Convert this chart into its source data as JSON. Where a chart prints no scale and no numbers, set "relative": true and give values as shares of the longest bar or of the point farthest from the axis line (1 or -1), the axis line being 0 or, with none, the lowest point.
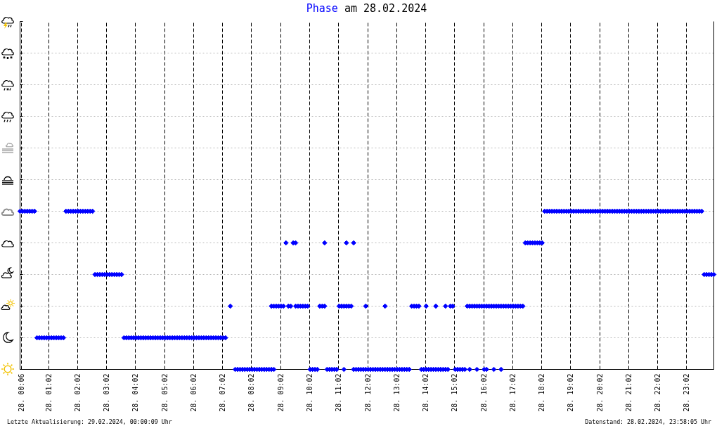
{
  "chart_data": {
    "type": "scatter",
    "title": "am 28.02.2024",
    "marker": "diamond",
    "grid": true,
    "tick_labels": "x",
    "relative": true,
    "xlim": [
      "2024-02-28T00:03",
      "2024-02-28T23:58"
    ],
    "xticks": [
      {
        "value": "2024-02-28T00:06",
        "label": "28. 00:06"
      },
      {
        "value": "2024-02-28T01:02",
        "label": "28. 01:02"
      },
      {
        "value": "2024-02-28T02:02",
        "label": "28. 02:02"
      },
      {
        "value": "2024-02-28T03:02",
        "label": "28. 03:02"
      },
      {
        "value": "2024-02-28T04:02",
        "label": "28. 04:02"
      },
      {
        "value": "2024-02-28T05:02",
        "label": "28. 05:02"
      },
      {
        "value": "2024-02-28T06:02",
        "label": "28. 06:02"
      },
      {
        "value": "2024-02-28T07:02",
        "label": "28. 07:02"
      },
      {
        "value": "2024-02-28T08:02",
        "label": "28. 08:02"
      },
      {
        "value": "2024-02-28T09:02",
        "label": "28. 09:02"
      },
      {
        "value": "2024-02-28T10:02",
        "label": "28. 10:02"
      },
      {
        "value": "2024-02-28T11:02",
        "label": "28. 11:02"
      },
      {
        "value": "2024-02-28T12:02",
        "label": "28. 12:02"
      },
      {
        "value": "2024-02-28T13:02",
        "label": "28. 13:02"
      },
      {
        "value": "2024-02-28T14:02",
        "label": "28. 14:02"
      },
      {
        "value": "2024-02-28T15:02",
        "label": "28. 15:02"
      },
      {
        "value": "2024-02-28T16:02",
        "label": "28. 16:02"
      },
      {
        "value": "2024-02-28T17:02",
        "label": "28. 17:02"
      },
      {
        "value": "2024-02-28T18:02",
        "label": "28. 18:02"
      },
      {
        "value": "2024-02-28T19:02",
        "label": "28. 19:02"
      },
      {
        "value": "2024-02-28T20:02",
        "label": "28. 20:02"
      },
      {
        "value": "2024-02-28T21:02",
        "label": "28. 21:02"
      },
      {
        "value": "2024-02-28T22:02",
        "label": "28. 22:02"
      },
      {
        "value": "2024-02-28T23:02",
        "label": "28. 23:02"
      }
    ],
    "annotations": [
      "Letzte Aktualisierung: 29.02.2024, 00:00:09 Uhr",
      "Datenstand: 28.02.2024, 23:58:05 Uhr"
    ],
    "series": [
      {
        "name": "Phase",
        "color": "#0000ff",
        "x": [
          "2024-02-28T00:03",
          "2024-02-28T00:08",
          "2024-02-28T00:13",
          "2024-02-28T00:18",
          "2024-02-28T00:23",
          "2024-02-28T00:28",
          "2024-02-28T00:33",
          "2024-02-28T00:38",
          "2024-02-28T00:43",
          "2024-02-28T00:48",
          "2024-02-28T00:53",
          "2024-02-28T00:58",
          "2024-02-28T01:03",
          "2024-02-28T01:08",
          "2024-02-28T01:13",
          "2024-02-28T01:18",
          "2024-02-28T01:23",
          "2024-02-28T01:28",
          "2024-02-28T01:33",
          "2024-02-28T01:38",
          "2024-02-28T01:43",
          "2024-02-28T01:48",
          "2024-02-28T01:53",
          "2024-02-28T01:58",
          "2024-02-28T02:03",
          "2024-02-28T02:08",
          "2024-02-28T02:13",
          "2024-02-28T02:18",
          "2024-02-28T02:23",
          "2024-02-28T02:28",
          "2024-02-28T02:33",
          "2024-02-28T02:38",
          "2024-02-28T02:43",
          "2024-02-28T02:48",
          "2024-02-28T02:53",
          "2024-02-28T02:58",
          "2024-02-28T03:03",
          "2024-02-28T03:08",
          "2024-02-28T03:13",
          "2024-02-28T03:18",
          "2024-02-28T03:23",
          "2024-02-28T03:28",
          "2024-02-28T03:33",
          "2024-02-28T03:38",
          "2024-02-28T03:43",
          "2024-02-28T03:48",
          "2024-02-28T03:53",
          "2024-02-28T03:58",
          "2024-02-28T04:03",
          "2024-02-28T04:08",
          "2024-02-28T04:13",
          "2024-02-28T04:18",
          "2024-02-28T04:23",
          "2024-02-28T04:28",
          "2024-02-28T04:33",
          "2024-02-28T04:38",
          "2024-02-28T04:43",
          "2024-02-28T04:48",
          "2024-02-28T04:53",
          "2024-02-28T04:58",
          "2024-02-28T05:03",
          "2024-02-28T05:08",
          "2024-02-28T05:13",
          "2024-02-28T05:18",
          "2024-02-28T05:23",
          "2024-02-28T05:28",
          "2024-02-28T05:33",
          "2024-02-28T05:38",
          "2024-02-28T05:43",
          "2024-02-28T05:48",
          "2024-02-28T05:53",
          "2024-02-28T05:58",
          "2024-02-28T06:03",
          "2024-02-28T06:08",
          "2024-02-28T06:13",
          "2024-02-28T06:18",
          "2024-02-28T06:23",
          "2024-02-28T06:28",
          "2024-02-28T06:33",
          "2024-02-28T06:38",
          "2024-02-28T06:43",
          "2024-02-28T06:48",
          "2024-02-28T06:53",
          "2024-02-28T06:58",
          "2024-02-28T07:03",
          "2024-02-28T07:08",
          "2024-02-28T07:18",
          "2024-02-28T07:28",
          "2024-02-28T07:33",
          "2024-02-28T07:38",
          "2024-02-28T07:43",
          "2024-02-28T07:48",
          "2024-02-28T07:53",
          "2024-02-28T07:58",
          "2024-02-28T08:03",
          "2024-02-28T08:08",
          "2024-02-28T08:13",
          "2024-02-28T08:18",
          "2024-02-28T08:23",
          "2024-02-28T08:28",
          "2024-02-28T08:33",
          "2024-02-28T08:38",
          "2024-02-28T08:43",
          "2024-02-28T08:43",
          "2024-02-28T08:48",
          "2024-02-28T08:48",
          "2024-02-28T08:53",
          "2024-02-28T08:58",
          "2024-02-28T09:03",
          "2024-02-28T09:08",
          "2024-02-28T09:13",
          "2024-02-28T09:18",
          "2024-02-28T09:23",
          "2024-02-28T09:28",
          "2024-02-28T09:33",
          "2024-02-28T09:33",
          "2024-02-28T09:38",
          "2024-02-28T09:43",
          "2024-02-28T09:48",
          "2024-02-28T09:53",
          "2024-02-28T09:58",
          "2024-02-28T10:03",
          "2024-02-28T10:08",
          "2024-02-28T10:13",
          "2024-02-28T10:18",
          "2024-02-28T10:23",
          "2024-02-28T10:28",
          "2024-02-28T10:33",
          "2024-02-28T10:33",
          "2024-02-28T10:38",
          "2024-02-28T10:43",
          "2024-02-28T10:48",
          "2024-02-28T10:53",
          "2024-02-28T10:58",
          "2024-02-28T11:03",
          "2024-02-28T11:08",
          "2024-02-28T11:13",
          "2024-02-28T11:13",
          "2024-02-28T11:18",
          "2024-02-28T11:18",
          "2024-02-28T11:23",
          "2024-02-28T11:28",
          "2024-02-28T11:33",
          "2024-02-28T11:33",
          "2024-02-28T11:38",
          "2024-02-28T11:43",
          "2024-02-28T11:48",
          "2024-02-28T11:53",
          "2024-02-28T11:58",
          "2024-02-28T11:58",
          "2024-02-28T12:03",
          "2024-02-28T12:08",
          "2024-02-28T12:13",
          "2024-02-28T12:18",
          "2024-02-28T12:23",
          "2024-02-28T12:28",
          "2024-02-28T12:33",
          "2024-02-28T12:38",
          "2024-02-28T12:38",
          "2024-02-28T12:43",
          "2024-02-28T12:48",
          "2024-02-28T12:53",
          "2024-02-28T12:58",
          "2024-02-28T13:03",
          "2024-02-28T13:08",
          "2024-02-28T13:13",
          "2024-02-28T13:18",
          "2024-02-28T13:23",
          "2024-02-28T13:28",
          "2024-02-28T13:33",
          "2024-02-28T13:38",
          "2024-02-28T13:43",
          "2024-02-28T13:48",
          "2024-02-28T13:53",
          "2024-02-28T13:58",
          "2024-02-28T14:03",
          "2024-02-28T14:03",
          "2024-02-28T14:08",
          "2024-02-28T14:13",
          "2024-02-28T14:18",
          "2024-02-28T14:23",
          "2024-02-28T14:23",
          "2024-02-28T14:28",
          "2024-02-28T14:33",
          "2024-02-28T14:38",
          "2024-02-28T14:43",
          "2024-02-28T14:43",
          "2024-02-28T14:48",
          "2024-02-28T14:53",
          "2024-02-28T14:58",
          "2024-02-28T15:03",
          "2024-02-28T15:08",
          "2024-02-28T15:13",
          "2024-02-28T15:18",
          "2024-02-28T15:23",
          "2024-02-28T15:28",
          "2024-02-28T15:33",
          "2024-02-28T15:33",
          "2024-02-28T15:38",
          "2024-02-28T15:43",
          "2024-02-28T15:48",
          "2024-02-28T15:48",
          "2024-02-28T15:53",
          "2024-02-28T15:58",
          "2024-02-28T16:03",
          "2024-02-28T16:03",
          "2024-02-28T16:08",
          "2024-02-28T16:08",
          "2024-02-28T16:13",
          "2024-02-28T16:18",
          "2024-02-28T16:23",
          "2024-02-28T16:23",
          "2024-02-28T16:28",
          "2024-02-28T16:33",
          "2024-02-28T16:38",
          "2024-02-28T16:38",
          "2024-02-28T16:43",
          "2024-02-28T16:48",
          "2024-02-28T16:53",
          "2024-02-28T16:58",
          "2024-02-28T17:03",
          "2024-02-28T17:08",
          "2024-02-28T17:13",
          "2024-02-28T17:18",
          "2024-02-28T17:23",
          "2024-02-28T17:28",
          "2024-02-28T17:33",
          "2024-02-28T17:38",
          "2024-02-28T17:43",
          "2024-02-28T17:48",
          "2024-02-28T17:53",
          "2024-02-28T17:58",
          "2024-02-28T18:03",
          "2024-02-28T18:08",
          "2024-02-28T18:13",
          "2024-02-28T18:18",
          "2024-02-28T18:23",
          "2024-02-28T18:28",
          "2024-02-28T18:33",
          "2024-02-28T18:38",
          "2024-02-28T18:43",
          "2024-02-28T18:48",
          "2024-02-28T18:53",
          "2024-02-28T18:58",
          "2024-02-28T19:03",
          "2024-02-28T19:08",
          "2024-02-28T19:13",
          "2024-02-28T19:18",
          "2024-02-28T19:23",
          "2024-02-28T19:28",
          "2024-02-28T19:33",
          "2024-02-28T19:38",
          "2024-02-28T19:43",
          "2024-02-28T19:48",
          "2024-02-28T19:53",
          "2024-02-28T19:58",
          "2024-02-28T20:03",
          "2024-02-28T20:08",
          "2024-02-28T20:13",
          "2024-02-28T20:18",
          "2024-02-28T20:23",
          "2024-02-28T20:28",
          "2024-02-28T20:33",
          "2024-02-28T20:38",
          "2024-02-28T20:43",
          "2024-02-28T20:48",
          "2024-02-28T20:53",
          "2024-02-28T20:58",
          "2024-02-28T21:03",
          "2024-02-28T21:08",
          "2024-02-28T21:13",
          "2024-02-28T21:18",
          "2024-02-28T21:23",
          "2024-02-28T21:28",
          "2024-02-28T21:33",
          "2024-02-28T21:38",
          "2024-02-28T21:43",
          "2024-02-28T21:48",
          "2024-02-28T21:53",
          "2024-02-28T21:58",
          "2024-02-28T22:03",
          "2024-02-28T22:08",
          "2024-02-28T22:13",
          "2024-02-28T22:18",
          "2024-02-28T22:23",
          "2024-02-28T22:28",
          "2024-02-28T22:33",
          "2024-02-28T22:38",
          "2024-02-28T22:43",
          "2024-02-28T22:48",
          "2024-02-28T22:53",
          "2024-02-28T22:58",
          "2024-02-28T23:03",
          "2024-02-28T23:08",
          "2024-02-28T23:13",
          "2024-02-28T23:18",
          "2024-02-28T23:23",
          "2024-02-28T23:28",
          "2024-02-28T23:33",
          "2024-02-28T23:38",
          "2024-02-28T23:43",
          "2024-02-28T23:48",
          "2024-02-28T23:53",
          "2024-02-28T23:58"
        ],
        "values": [
          1,
          1,
          1,
          1,
          1,
          1,
          1,
          0.2,
          0.2,
          0.2,
          0.2,
          0.2,
          0.2,
          0.2,
          0.2,
          0.2,
          0.2,
          0.2,
          0.2,
          1,
          1,
          1,
          1,
          1,
          1,
          1,
          1,
          1,
          1,
          1,
          1,
          0.6,
          0.6,
          0.6,
          0.6,
          0.6,
          0.6,
          0.6,
          0.6,
          0.6,
          0.6,
          0.6,
          0.6,
          0.2,
          0.2,
          0.2,
          0.2,
          0.2,
          0.2,
          0.2,
          0.2,
          0.2,
          0.2,
          0.2,
          0.2,
          0.2,
          0.2,
          0.2,
          0.2,
          0.2,
          0.2,
          0.2,
          0.2,
          0.2,
          0.2,
          0.2,
          0.2,
          0.2,
          0.2,
          0.2,
          0.2,
          0.2,
          0.2,
          0.2,
          0.2,
          0.2,
          0.2,
          0.2,
          0.2,
          0.2,
          0.2,
          0.2,
          0.2,
          0.2,
          0.2,
          0.2,
          0.4,
          0,
          0,
          0,
          0,
          0,
          0,
          0,
          0,
          0,
          0,
          0,
          0,
          0,
          0,
          0,
          0,
          0.4,
          0,
          0.4,
          0.4,
          0.4,
          0.4,
          0.4,
          0.8,
          0.4,
          0.4,
          0.8,
          0.8,
          0.4,
          0.4,
          0.4,
          0.4,
          0.4,
          0.4,
          0,
          0,
          0,
          0,
          0.4,
          0.4,
          0.4,
          0.8,
          0,
          0,
          0,
          0,
          0,
          0.4,
          0.4,
          0.4,
          0,
          0.4,
          0.8,
          0.4,
          0.4,
          0.8,
          0,
          0,
          0,
          0,
          0,
          0,
          0.4,
          0,
          0,
          0,
          0,
          0,
          0,
          0,
          0,
          0.4,
          0,
          0,
          0,
          0,
          0,
          0,
          0,
          0,
          0,
          0,
          0.4,
          0.4,
          0.4,
          0.4,
          0,
          0,
          0,
          0.4,
          0,
          0,
          0,
          0,
          0.4,
          0,
          0,
          0,
          0,
          0.4,
          0,
          0.4,
          0.4,
          0,
          0,
          0,
          0,
          0,
          0.4,
          0.4,
          0,
          0.4,
          0.4,
          0.4,
          0,
          0.4,
          0.4,
          0.4,
          0,
          0.4,
          0,
          0.4,
          0.4,
          0.4,
          0,
          0.4,
          0.4,
          0.4,
          0,
          0.4,
          0.4,
          0.4,
          0.4,
          0.4,
          0.4,
          0.4,
          0.4,
          0.4,
          0.8,
          0.8,
          0.8,
          0.8,
          0.8,
          0.8,
          0.8,
          0.8,
          1,
          1,
          1,
          1,
          1,
          1,
          1,
          1,
          1,
          1,
          1,
          1,
          1,
          1,
          1,
          1,
          1,
          1,
          1,
          1,
          1,
          1,
          1,
          1,
          1,
          1,
          1,
          1,
          1,
          1,
          1,
          1,
          1,
          1,
          1,
          1,
          1,
          1,
          1,
          1,
          1,
          1,
          1,
          1,
          1,
          1,
          1,
          1,
          1,
          1,
          1,
          1,
          1,
          1,
          1,
          1,
          1,
          1,
          1,
          1,
          1,
          1,
          1,
          1,
          1,
          1,
          0.6,
          0.6,
          0.6,
          0.6,
          0.6
        ]
      }
    ]
  }
}
